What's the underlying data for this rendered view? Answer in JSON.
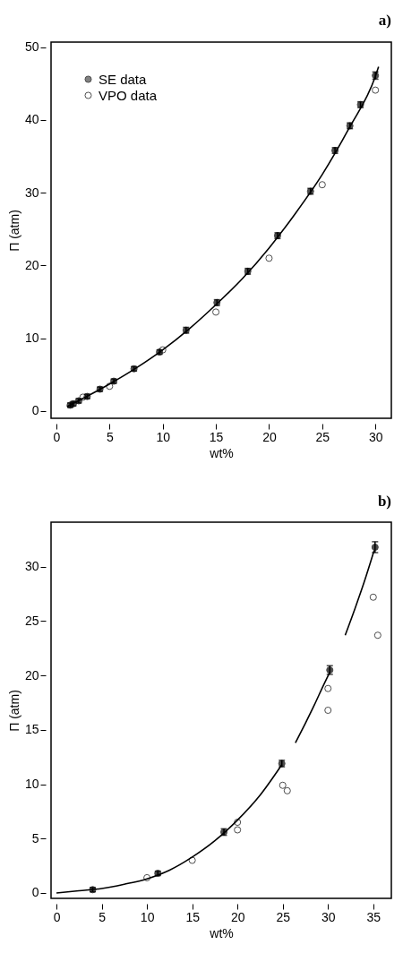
{
  "chart_data": [
    {
      "type": "scatter",
      "title": "a)",
      "xlabel": "wt%",
      "ylabel": "Π (atm)",
      "xlim": [
        -0.5,
        31.5
      ],
      "ylim": [
        -1,
        50.7
      ],
      "xticks": [
        0,
        5,
        10,
        15,
        20,
        25,
        30
      ],
      "yticks": [
        0,
        10,
        20,
        30,
        40,
        50
      ],
      "grid": false,
      "legend": "top left",
      "series": [
        {
          "name": "SE data",
          "marker": "circle",
          "color": "#000000",
          "x": [
            1.3,
            1.6,
            2.1,
            2.9,
            4.1,
            5.4,
            7.3,
            9.7,
            12.2,
            15.1,
            18,
            20.8,
            23.9,
            26.2,
            27.6,
            28.6,
            30
          ],
          "values": [
            0.8,
            1.0,
            1.4,
            2.0,
            3.0,
            4.1,
            5.8,
            8.1,
            11.1,
            14.9,
            19.2,
            24.1,
            30.2,
            35.8,
            39.2,
            42.1,
            46.1
          ],
          "errors": [
            0.3,
            0.3,
            0.3,
            0.3,
            0.3,
            0.3,
            0.3,
            0.3,
            0.4,
            0.4,
            0.4,
            0.4,
            0.4,
            0.4,
            0.4,
            0.4,
            0.5
          ]
        },
        {
          "name": "VPO data",
          "marker": "circle",
          "color": "#000000",
          "x": [
            2.5,
            5,
            10,
            15,
            20,
            25,
            30
          ],
          "values": [
            1.9,
            3.4,
            8.4,
            13.6,
            21,
            31.1,
            44.1
          ]
        },
        {
          "type": "line",
          "color": "#000000",
          "x": [
            1,
            3,
            5,
            7.5,
            10,
            12.5,
            15,
            17.5,
            20,
            22.5,
            25,
            27.5,
            30,
            30.3
          ],
          "values": [
            0.6,
            2.1,
            3.7,
            5.9,
            8.4,
            11.3,
            14.6,
            18.2,
            22.4,
            27.2,
            32.5,
            38.8,
            46.0,
            47.3
          ]
        }
      ]
    },
    {
      "type": "scatter",
      "title": "b)",
      "xlabel": "wt%",
      "ylabel": "Π (atm)",
      "xlim": [
        -0.6,
        37
      ],
      "ylim": [
        -0.5,
        34.1
      ],
      "xticks": [
        0,
        5,
        10,
        15,
        20,
        25,
        30,
        35
      ],
      "yticks": [
        0,
        5,
        10,
        15,
        20,
        25,
        30
      ],
      "grid": false,
      "legend": "top left",
      "series": [
        {
          "name": "SE data",
          "marker": "circle",
          "color": "#000000",
          "x": [
            4.0,
            11.2,
            18.5,
            24.9,
            30.2,
            35.2
          ],
          "values": [
            0.3,
            1.8,
            5.6,
            11.9,
            20.5,
            31.8
          ],
          "errors": [
            0.2,
            0.2,
            0.3,
            0.3,
            0.4,
            0.5
          ]
        },
        {
          "name": "VPO data",
          "marker": "circle",
          "color": "#000000",
          "x": [
            10,
            15,
            20,
            20,
            25,
            25.5,
            30,
            30,
            35,
            35.5
          ],
          "values": [
            1.4,
            3.0,
            6.5,
            5.8,
            9.9,
            9.4,
            16.8,
            18.8,
            27.2,
            23.7
          ]
        },
        {
          "type": "line",
          "color": "#000000",
          "x": [
            0,
            2.5,
            5,
            7.5,
            10,
            12.5,
            15,
            17.5,
            20,
            22.5,
            24.9
          ],
          "values": [
            0,
            0.2,
            0.4,
            0.8,
            1.3,
            2.1,
            3.3,
            4.8,
            6.7,
            9.0,
            11.8
          ]
        },
        {
          "type": "line",
          "color": "#000000",
          "x": [
            26.4,
            27.5,
            28.5,
            29.5,
            30.2
          ],
          "values": [
            13.8,
            15.6,
            17.3,
            19.1,
            20.3
          ]
        },
        {
          "type": "line",
          "color": "#000000",
          "x": [
            31.9,
            33,
            34,
            35.1
          ],
          "values": [
            23.7,
            26.2,
            28.6,
            31.5
          ]
        }
      ]
    }
  ]
}
